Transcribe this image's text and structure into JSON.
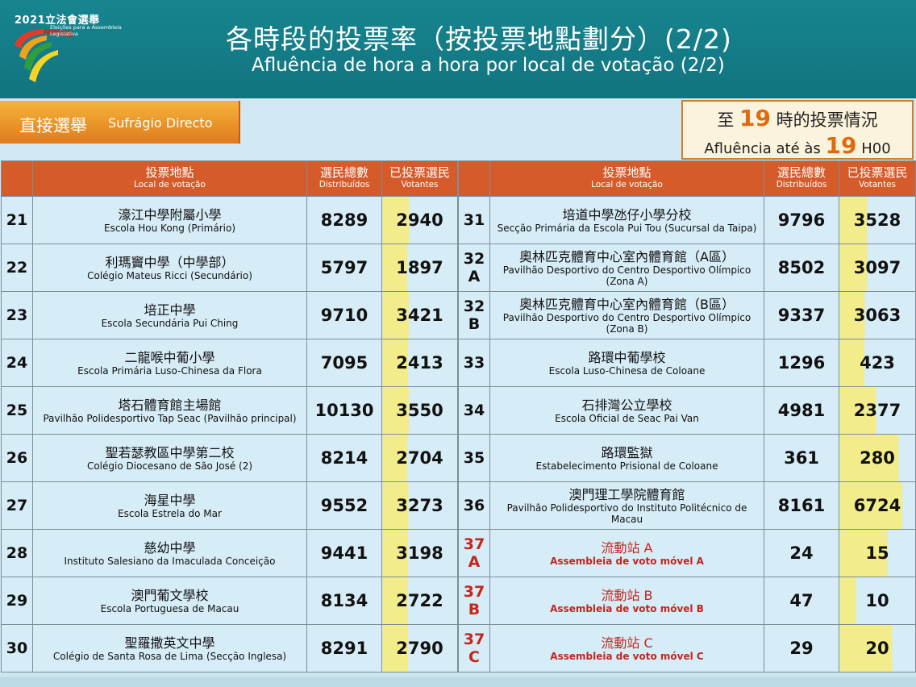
{
  "header": {
    "logo_year": "2021立法會選舉",
    "logo_sub": "Eleições para a Assembleia Legislativa",
    "title_zh": "各時段的投票率（按投票地點劃分）(2/2)",
    "title_pt": "Afluência de hora a hora por local de votação (2/2)"
  },
  "section": {
    "label_zh": "直接選舉",
    "label_pt": "Sufrágio Directo"
  },
  "time_box": {
    "pre_zh": "至",
    "hour": "19",
    "post_zh": "時的投票情況",
    "pre_pt": "Afluência até às",
    "hour_pt": "19",
    "post_pt": "H00"
  },
  "columns": {
    "location_zh": "投票地點",
    "location_pt": "Local de votação",
    "voters_zh": "選民總數",
    "voters_pt": "Distribuídos",
    "voted_zh": "已投票選民",
    "voted_pt": "Votantes"
  },
  "left_rows": [
    {
      "no": "21",
      "zh": "濠江中學附屬小學",
      "pt": "Escola Hou Kong (Primário)",
      "voters": "8289",
      "voted": "2940"
    },
    {
      "no": "22",
      "zh": "利瑪竇中學（中學部）",
      "pt": "Colégio Mateus Ricci (Secundário)",
      "voters": "5797",
      "voted": "1897"
    },
    {
      "no": "23",
      "zh": "培正中學",
      "pt": "Escola Secundária Pui Ching",
      "voters": "9710",
      "voted": "3421"
    },
    {
      "no": "24",
      "zh": "二龍喉中葡小學",
      "pt": "Escola Primária Luso-Chinesa da Flora",
      "voters": "7095",
      "voted": "2413"
    },
    {
      "no": "25",
      "zh": "塔石體育館主場館",
      "pt": "Pavilhão Polidesportivo Tap Seac (Pavilhão principal)",
      "voters": "10130",
      "voted": "3550"
    },
    {
      "no": "26",
      "zh": "聖若瑟教區中學第二校",
      "pt": "Colégio Diocesano de São José (2)",
      "voters": "8214",
      "voted": "2704"
    },
    {
      "no": "27",
      "zh": "海星中學",
      "pt": "Escola Estrela do Mar",
      "voters": "9552",
      "voted": "3273"
    },
    {
      "no": "28",
      "zh": "慈幼中學",
      "pt": "Instituto Salesiano da Imaculada Conceição",
      "voters": "9441",
      "voted": "3198"
    },
    {
      "no": "29",
      "zh": "澳門葡文學校",
      "pt": "Escola Portuguesa de Macau",
      "voters": "8134",
      "voted": "2722"
    },
    {
      "no": "30",
      "zh": "聖羅撒英文中學",
      "pt": "Colégio de Santa Rosa de Lima (Secção Inglesa)",
      "voters": "8291",
      "voted": "2790"
    }
  ],
  "right_rows": [
    {
      "no": "31",
      "zh": "培道中學氹仔小學分校",
      "pt": "Secção Primária da Escola Pui Tou (Sucursal da Taipa)",
      "voters": "9796",
      "voted": "3528",
      "mobile": false
    },
    {
      "no": "32 A",
      "zh": "奧林匹克體育中心室內體育館（A區）",
      "pt": "Pavilhão Desportivo do Centro Desportivo Olímpico (Zona A)",
      "voters": "8502",
      "voted": "3097",
      "mobile": false
    },
    {
      "no": "32 B",
      "zh": "奧林匹克體育中心室內體育館（B區）",
      "pt": "Pavilhão Desportivo do Centro Desportivo Olímpico (Zona B)",
      "voters": "9337",
      "voted": "3063",
      "mobile": false
    },
    {
      "no": "33",
      "zh": "路環中葡學校",
      "pt": "Escola Luso-Chinesa de Coloane",
      "voters": "1296",
      "voted": "423",
      "mobile": false
    },
    {
      "no": "34",
      "zh": "石排灣公立學校",
      "pt": "Escola Oficial de Seac Pai Van",
      "voters": "4981",
      "voted": "2377",
      "mobile": false
    },
    {
      "no": "35",
      "zh": "路環監獄",
      "pt": "Estabelecimento Prisional de Coloane",
      "voters": "361",
      "voted": "280",
      "mobile": false
    },
    {
      "no": "36",
      "zh": "澳門理工學院體育館",
      "pt": "Pavilhão Polidesportivo do Instituto Politécnico de Macau",
      "voters": "8161",
      "voted": "6724",
      "mobile": false
    },
    {
      "no": "37 A",
      "zh": "流動站 A",
      "pt": "Assembleia de voto móvel A",
      "voters": "24",
      "voted": "15",
      "mobile": true
    },
    {
      "no": "37 B",
      "zh": "流動站 B",
      "pt": "Assembleia de voto móvel B",
      "voters": "47",
      "voted": "10",
      "mobile": true
    },
    {
      "no": "37 C",
      "zh": "流動站 C",
      "pt": "Assembleia de voto móvel C",
      "voters": "29",
      "voted": "20",
      "mobile": true
    }
  ],
  "colors": {
    "header_bg": "#12747f",
    "table_header": "#d55b2b",
    "mobile_text": "#c4261d",
    "highlight": "#e06a10",
    "turnout_bar": "#f2ec8a"
  }
}
